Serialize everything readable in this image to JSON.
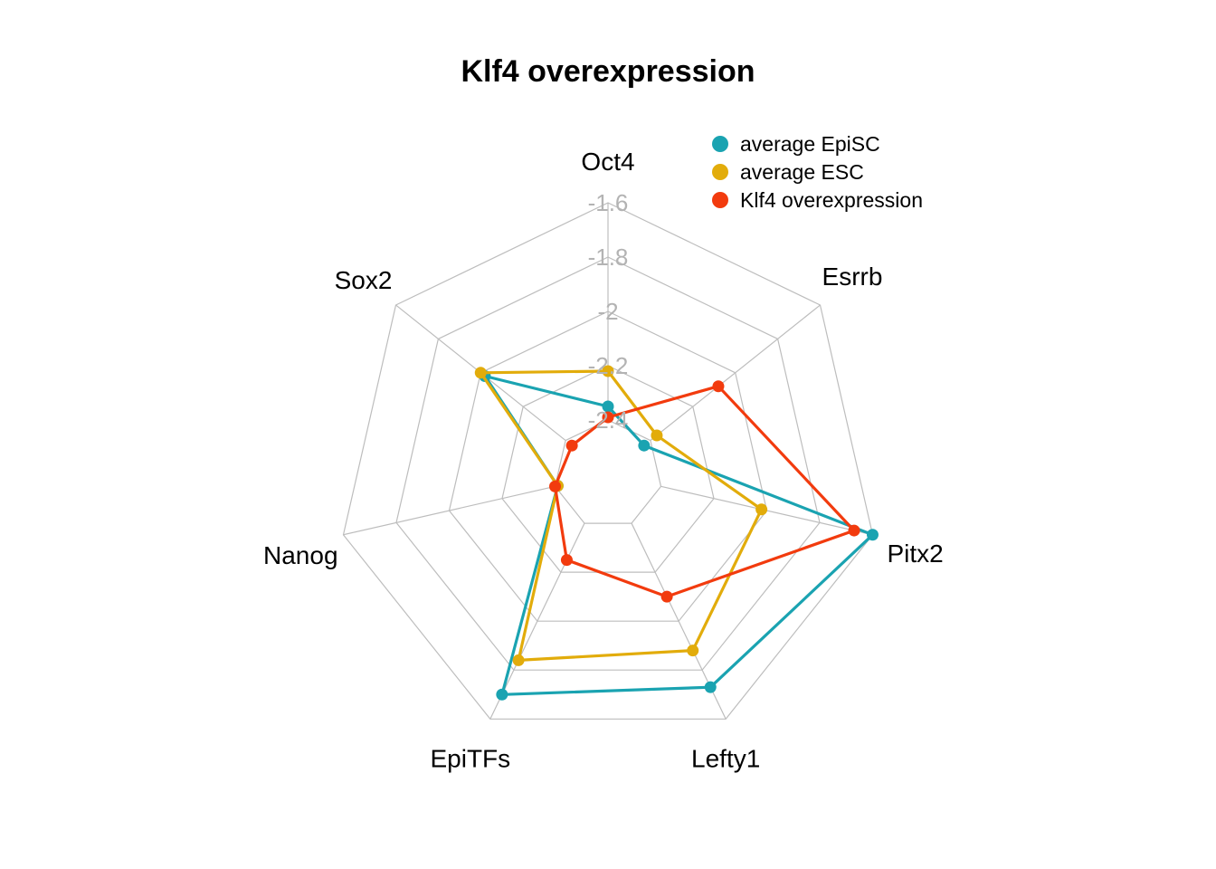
{
  "chart_data": {
    "type": "radar",
    "title": "Klf4 overexpression",
    "axes": [
      "Oct4",
      "Esrrb",
      "Pitx2",
      "Lefty1",
      "EpiTFs",
      "Nanog",
      "Sox2"
    ],
    "rlim": [
      -2.6,
      -1.6
    ],
    "ticks": [
      -1.6,
      -1.8,
      -2,
      -2.2,
      -2.4
    ],
    "tick_labels": [
      "-1.6",
      "-1.8",
      "-2",
      "-2.2",
      "-2.4"
    ],
    "grid": true,
    "legend_position": "top-right",
    "series": [
      {
        "name": "average EpiSC",
        "color": "#1aa3b1",
        "values": [
          -2.35,
          -2.43,
          -1.6,
          -1.73,
          -1.7,
          -2.41,
          -2.02
        ]
      },
      {
        "name": "average ESC",
        "color": "#e2ac0b",
        "values": [
          -2.22,
          -2.37,
          -2.02,
          -1.88,
          -1.84,
          -2.41,
          -2.0
        ]
      },
      {
        "name": "Klf4 overexpression",
        "color": "#f23b0e",
        "values": [
          -2.39,
          -2.08,
          -1.67,
          -2.1,
          -2.25,
          -2.4,
          -2.43
        ]
      }
    ]
  }
}
